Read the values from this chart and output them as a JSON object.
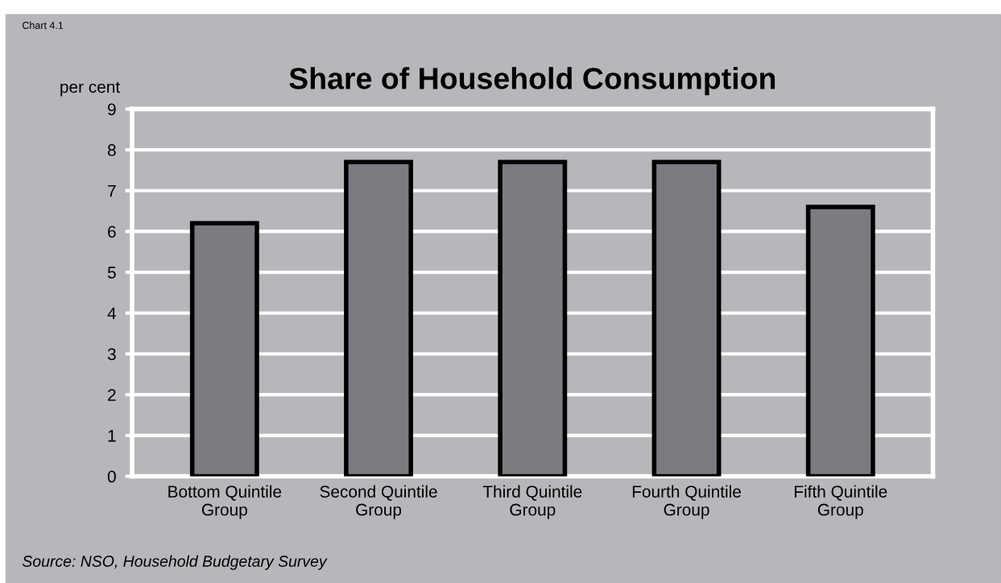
{
  "chart_data": {
    "type": "bar",
    "title": "Share of Household Consumption",
    "ylabel": "per cent",
    "categories": [
      "Bottom Quintile\nGroup",
      "Second Quintile\nGroup",
      "Third Quintile\nGroup",
      "Fourth Quintile\nGroup",
      "Fifth Quintile\nGroup"
    ],
    "values": [
      6.2,
      7.7,
      7.7,
      7.7,
      6.6
    ],
    "color": "#7b7c81",
    "ylim": [
      0,
      9
    ],
    "yticks": [
      0,
      1,
      2,
      3,
      4,
      5,
      6,
      7,
      8,
      9
    ],
    "grid": "y",
    "annotations": [
      "Chart 4.1",
      "Source: NSO, Household Budgetary Survey"
    ]
  }
}
